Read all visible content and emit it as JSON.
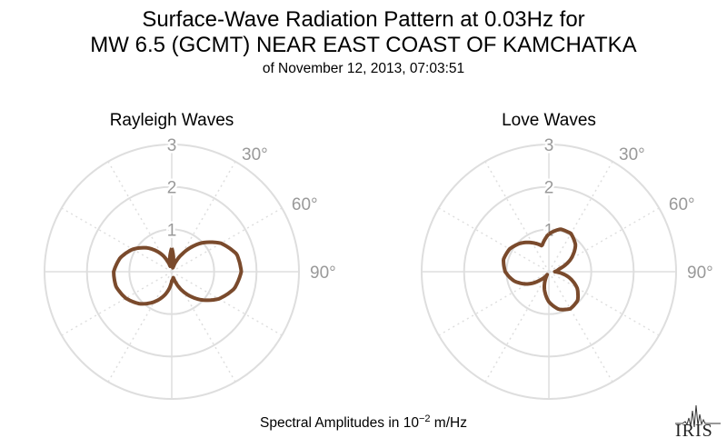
{
  "title": {
    "line1": "Surface-Wave Radiation Pattern at 0.03Hz for",
    "line2": "MW 6.5 (GCMT) NEAR EAST COAST OF KAMCHATKA",
    "subtitle": "of November 12, 2013, 07:03:51"
  },
  "caption": {
    "prefix": "Spectral Amplitudes in ",
    "base": "10",
    "exponent": "−2",
    "unit": " m/Hz"
  },
  "logo": {
    "text": "IRIS"
  },
  "colors": {
    "curve": "#7a4a2c",
    "grid": "#dedede",
    "label": "#999999"
  },
  "chart_data": [
    {
      "type": "polar",
      "title": "Rayleigh Waves",
      "rmax": 3,
      "radial_ticks": [
        1,
        2,
        3
      ],
      "angle_labels": [
        "30°",
        "60°",
        "90°"
      ],
      "angle_ticks_deg": [
        30,
        60,
        90
      ],
      "grid": true,
      "series": [
        {
          "azimuth_deg": [
            0,
            15,
            30,
            45,
            60,
            75,
            90,
            105,
            120,
            135,
            150,
            165,
            180,
            195,
            210,
            225,
            240,
            255,
            270,
            285,
            300,
            315,
            330,
            345,
            360
          ],
          "amplitude": [
            0.56,
            0.07,
            0.47,
            0.95,
            1.34,
            1.59,
            1.64,
            1.53,
            1.28,
            0.93,
            0.54,
            0.14,
            0.22,
            0.54,
            0.82,
            1.07,
            1.25,
            1.36,
            1.37,
            1.26,
            1.06,
            0.79,
            0.47,
            0.11,
            0.56
          ]
        }
      ]
    },
    {
      "type": "polar",
      "title": "Love Waves",
      "rmax": 3,
      "radial_ticks": [
        1,
        2,
        3
      ],
      "angle_labels": [
        "30°",
        "60°",
        "90°"
      ],
      "angle_ticks_deg": [
        30,
        60,
        90
      ],
      "grid": true,
      "series": [
        {
          "azimuth_deg": [
            0,
            15,
            30,
            45,
            60,
            75,
            90,
            105,
            120,
            135,
            150,
            165,
            180,
            195,
            210,
            225,
            240,
            255,
            270,
            285,
            300,
            315,
            330,
            345,
            360
          ],
          "amplitude": [
            0.89,
            1.04,
            1.04,
            0.89,
            0.6,
            0.25,
            0.14,
            0.48,
            0.77,
            0.96,
            1.01,
            0.92,
            0.71,
            0.41,
            0.08,
            0.26,
            0.58,
            0.85,
            1.03,
            1.11,
            1.07,
            0.95,
            0.79,
            0.63,
            0.89
          ]
        }
      ]
    }
  ]
}
